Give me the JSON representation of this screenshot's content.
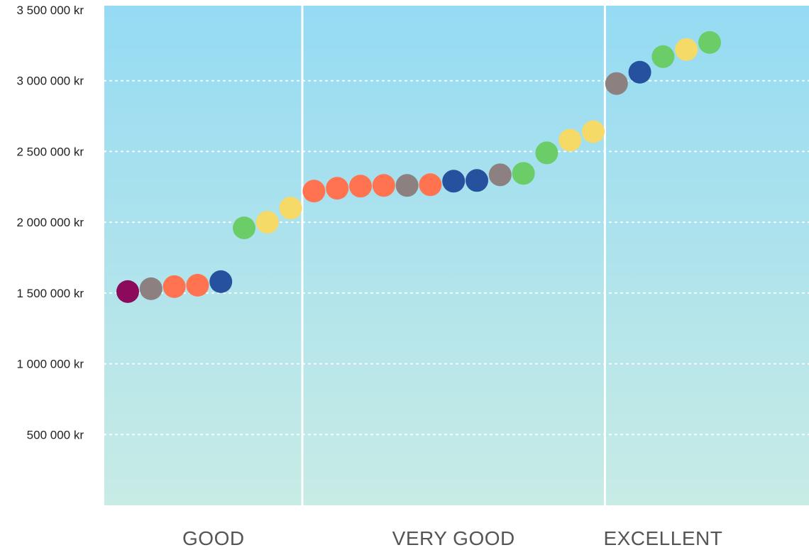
{
  "chart_data": {
    "type": "scatter",
    "ylim": [
      0,
      3500000
    ],
    "y_ticks": [
      "3 500 000 kr",
      "3 000 000 kr",
      "2 500 000 kr",
      "2 000 000 kr",
      "1 500 000 kr",
      "1 000 000 kr",
      "500 000 kr"
    ],
    "y_tick_values": [
      3500000,
      3000000,
      2500000,
      2000000,
      1500000,
      1000000,
      500000
    ],
    "grid": "horizontal dotted",
    "categories": [
      "GOOD",
      "VERY GOOD",
      "EXCELLENT"
    ],
    "points_per_category": [
      8,
      13,
      5
    ],
    "colors": {
      "purple": "#8b0a5b",
      "gray": "#8c8180",
      "orange": "#ff7350",
      "blue": "#25519f",
      "green": "#6acd68",
      "yellow": "#f6da68"
    },
    "background_top": "#95dbf3",
    "background_bottom": "#c8ebe5",
    "points": [
      {
        "category": "GOOD",
        "value": 1510000,
        "color": "purple"
      },
      {
        "category": "GOOD",
        "value": 1530000,
        "color": "gray"
      },
      {
        "category": "GOOD",
        "value": 1545000,
        "color": "orange"
      },
      {
        "category": "GOOD",
        "value": 1555000,
        "color": "orange"
      },
      {
        "category": "GOOD",
        "value": 1580000,
        "color": "blue"
      },
      {
        "category": "GOOD",
        "value": 1960000,
        "color": "green"
      },
      {
        "category": "GOOD",
        "value": 2000000,
        "color": "yellow"
      },
      {
        "category": "GOOD",
        "value": 2100000,
        "color": "yellow"
      },
      {
        "category": "VERY GOOD",
        "value": 2220000,
        "color": "orange"
      },
      {
        "category": "VERY GOOD",
        "value": 2240000,
        "color": "orange"
      },
      {
        "category": "VERY GOOD",
        "value": 2255000,
        "color": "orange"
      },
      {
        "category": "VERY GOOD",
        "value": 2260000,
        "color": "orange"
      },
      {
        "category": "VERY GOOD",
        "value": 2260000,
        "color": "gray"
      },
      {
        "category": "VERY GOOD",
        "value": 2265000,
        "color": "orange"
      },
      {
        "category": "VERY GOOD",
        "value": 2290000,
        "color": "blue"
      },
      {
        "category": "VERY GOOD",
        "value": 2295000,
        "color": "blue"
      },
      {
        "category": "VERY GOOD",
        "value": 2335000,
        "color": "gray"
      },
      {
        "category": "VERY GOOD",
        "value": 2345000,
        "color": "green"
      },
      {
        "category": "VERY GOOD",
        "value": 2490000,
        "color": "green"
      },
      {
        "category": "VERY GOOD",
        "value": 2580000,
        "color": "yellow"
      },
      {
        "category": "VERY GOOD",
        "value": 2640000,
        "color": "yellow"
      },
      {
        "category": "EXCELLENT",
        "value": 2980000,
        "color": "gray"
      },
      {
        "category": "EXCELLENT",
        "value": 3060000,
        "color": "blue"
      },
      {
        "category": "EXCELLENT",
        "value": 3170000,
        "color": "green"
      },
      {
        "category": "EXCELLENT",
        "value": 3220000,
        "color": "yellow"
      },
      {
        "category": "EXCELLENT",
        "value": 3270000,
        "color": "green"
      }
    ]
  }
}
